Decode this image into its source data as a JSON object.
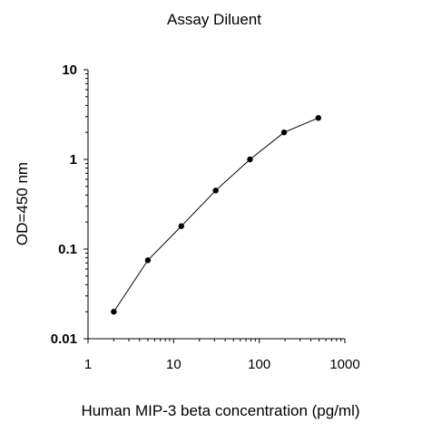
{
  "chart_data": {
    "type": "line",
    "title": "Assay Diluent",
    "xlabel": "Human MIP-3 beta  concentration (pg/ml)",
    "ylabel": "OD=450 nm",
    "x_scale": "log",
    "y_scale": "log",
    "xlim": [
      1,
      1000
    ],
    "ylim": [
      0.01,
      10
    ],
    "x_ticks": [
      {
        "value": 1,
        "label": "1"
      },
      {
        "value": 10,
        "label": "10"
      },
      {
        "value": 100,
        "label": "100"
      },
      {
        "value": 1000,
        "label": "1000"
      }
    ],
    "y_ticks": [
      {
        "value": 0.01,
        "label": "0.01"
      },
      {
        "value": 0.1,
        "label": "0.1"
      },
      {
        "value": 1,
        "label": "1"
      },
      {
        "value": 10,
        "label": "10"
      }
    ],
    "grid": false,
    "legend": "none",
    "series": [
      {
        "color": "#000000",
        "marker": "circle",
        "points": [
          {
            "x": 2,
            "y": 0.02
          },
          {
            "x": 5,
            "y": 0.075
          },
          {
            "x": 12.3,
            "y": 0.18
          },
          {
            "x": 31,
            "y": 0.45
          },
          {
            "x": 78,
            "y": 1.0
          },
          {
            "x": 195,
            "y": 2.0
          },
          {
            "x": 490,
            "y": 2.9
          }
        ]
      }
    ]
  }
}
